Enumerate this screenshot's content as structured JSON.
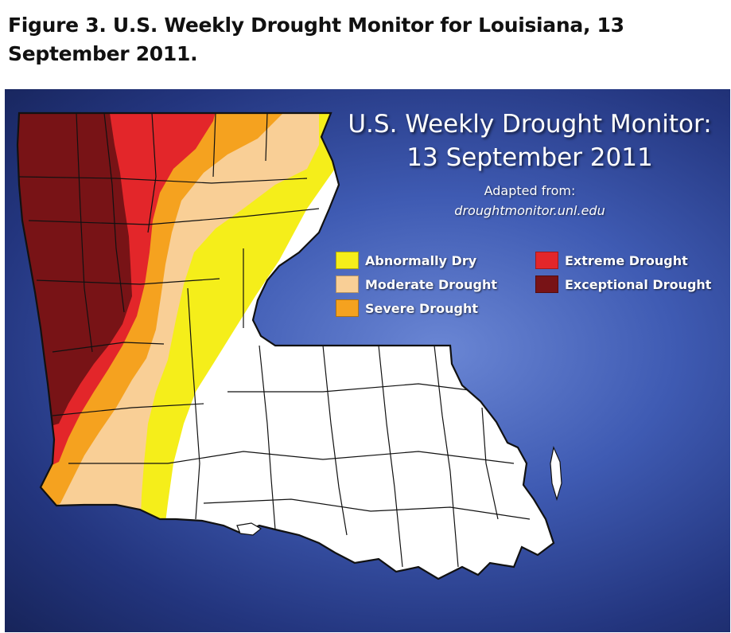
{
  "caption": "Figure 3. U.S. Weekly Drought Monitor for Louisiana, 13 September 2011.",
  "map": {
    "title_line1": "U.S. Weekly Drought Monitor:",
    "title_line2": "13 September 2011",
    "adapted_from": "Adapted from:",
    "source_url": "droughtmonitor.unl.edu"
  },
  "legend": [
    {
      "label": "Abnormally Dry",
      "color": "#f5ee1a"
    },
    {
      "label": "Moderate Drought",
      "color": "#f9cf96"
    },
    {
      "label": "Severe Drought",
      "color": "#f5a21f"
    },
    {
      "label": "Extreme Drought",
      "color": "#e3262a"
    },
    {
      "label": "Exceptional Drought",
      "color": "#781316"
    }
  ],
  "colors": {
    "background": "#3f5bb3",
    "no_drought": "#ffffff",
    "border": "#111111"
  }
}
